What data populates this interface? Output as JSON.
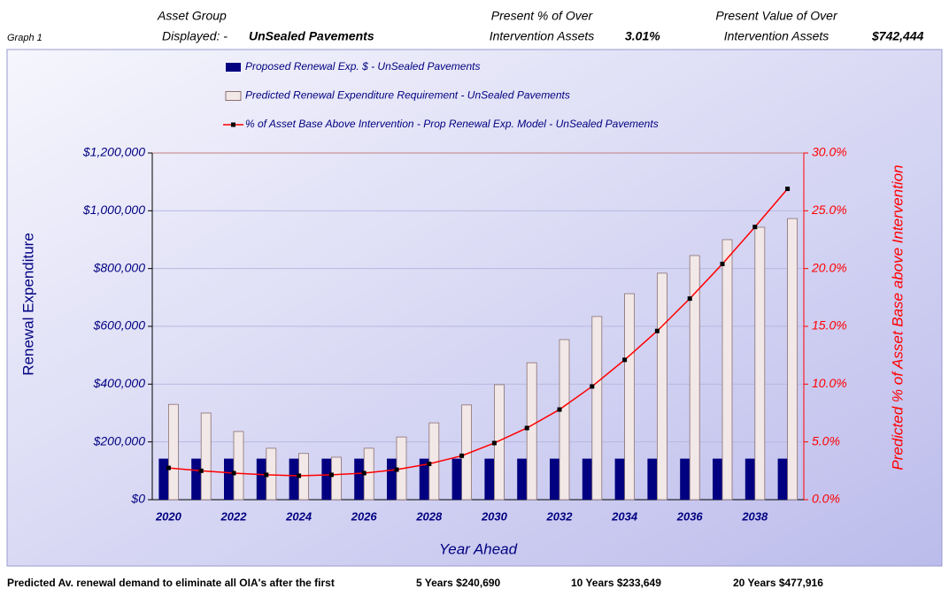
{
  "header": {
    "graph": "Graph 1",
    "group_title": "Asset Group",
    "group_label": "Displayed: -",
    "group_value": "UnSealed Pavements",
    "pct_title": "Present % of Over",
    "pct_label": "Intervention Assets",
    "pct_value": "3.01%",
    "val_title": "Present Value of Over",
    "val_label": "Intervention Assets",
    "val_value": "$742,444"
  },
  "chart_data": {
    "type": "bar",
    "xlabel": "Year Ahead",
    "ylabel": "Renewal Expenditure",
    "y2label": "Predicted % of Asset Base above Intervention",
    "categories": [
      "2020",
      null,
      "2022",
      null,
      "2024",
      null,
      "2026",
      null,
      "2028",
      null,
      "2030",
      null,
      "2032",
      null,
      "2034",
      null,
      "2036",
      null,
      "2038",
      null
    ],
    "series": [
      {
        "name": "Proposed Renewal Exp. $ -  UnSealed Pavements",
        "type": "bar",
        "color": "#000080",
        "values": [
          142000,
          142000,
          142000,
          142000,
          142000,
          142000,
          142000,
          142000,
          142000,
          142000,
          142000,
          142000,
          142000,
          142000,
          142000,
          142000,
          142000,
          142000,
          142000,
          142000
        ]
      },
      {
        "name": "Predicted Renewal Expenditure Requirement -  UnSealed Pavements",
        "type": "bar",
        "color": "#f2e8e8",
        "values": [
          330000,
          300000,
          236000,
          178000,
          160000,
          147000,
          178000,
          217000,
          266000,
          328000,
          398000,
          474000,
          554000,
          634000,
          713000,
          784000,
          845000,
          900000,
          943000,
          973000
        ]
      },
      {
        "name": "% of Asset Base Above Intervention - Prop Renewal Exp. Model -  UnSealed Pavements",
        "type": "line",
        "axis": "y2",
        "color": "#ff0000",
        "values": [
          2.75,
          2.5,
          2.3,
          2.15,
          2.07,
          2.15,
          2.3,
          2.6,
          3.1,
          3.8,
          4.9,
          6.2,
          7.8,
          9.8,
          12.1,
          14.6,
          17.4,
          20.4,
          23.6,
          26.9
        ]
      }
    ],
    "ylim": [
      0,
      1200000
    ],
    "yticks": [
      {
        "value": 0,
        "label": "$0"
      },
      {
        "value": 200000,
        "label": "$200,000"
      },
      {
        "value": 400000,
        "label": "$400,000"
      },
      {
        "value": 600000,
        "label": "$600,000"
      },
      {
        "value": 800000,
        "label": "$800,000"
      },
      {
        "value": 1000000,
        "label": "$1,000,000"
      },
      {
        "value": 1200000,
        "label": "$1,200,000"
      }
    ],
    "y2lim": [
      0,
      30
    ],
    "y2ticks": [
      {
        "value": 0,
        "label": "0.0%"
      },
      {
        "value": 5,
        "label": "5.0%"
      },
      {
        "value": 10,
        "label": "10.0%"
      },
      {
        "value": 15,
        "label": "15.0%"
      },
      {
        "value": 20,
        "label": "20.0%"
      },
      {
        "value": 25,
        "label": "25.0%"
      },
      {
        "value": 30,
        "label": "30.0%"
      }
    ],
    "grid": true,
    "legend": "top"
  },
  "footer": {
    "text": "Predicted Av. renewal demand to eliminate all OIA's after the first",
    "y5": "5 Years $240,690",
    "y10": "10 Years $233,649",
    "y20": "20 Years $477,916"
  }
}
